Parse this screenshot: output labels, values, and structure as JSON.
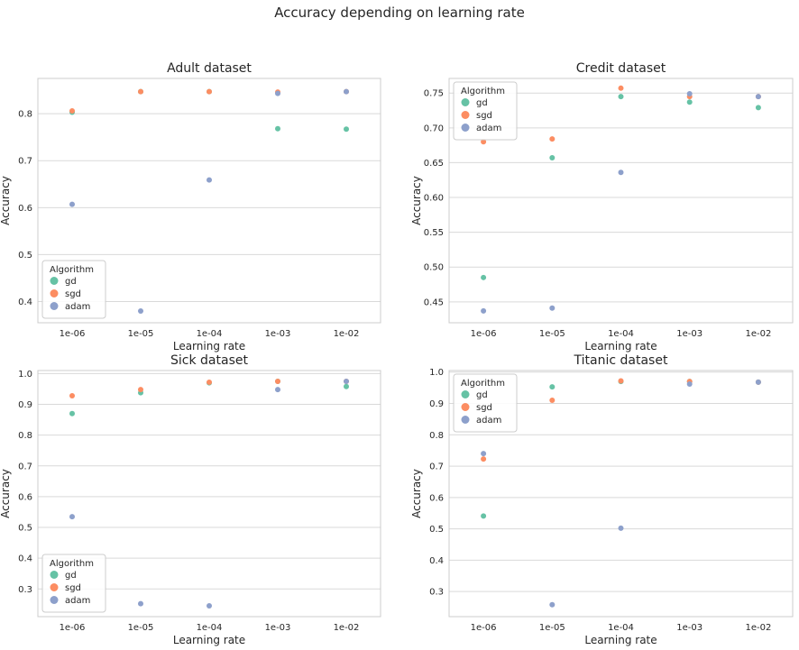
{
  "figure": {
    "suptitle": "Accuracy depending on learning rate"
  },
  "colors": {
    "gd": "#66c2a5",
    "sgd": "#fc8d62",
    "adam": "#8da0cb",
    "grid": "#d9d9d9",
    "frame": "#cccccc"
  },
  "chart_data": [
    {
      "type": "scatter",
      "title": "Adult dataset",
      "xlabel": "Learning rate",
      "ylabel": "Accuracy",
      "categories": [
        "1e-06",
        "1e-05",
        "1e-04",
        "1e-03",
        "1e-02"
      ],
      "ylim": [
        0.355,
        0.875
      ],
      "yticks": [
        0.4,
        0.5,
        0.6,
        0.7,
        0.8
      ],
      "ytick_labels": [
        "0.4",
        "0.5",
        "0.6",
        "0.7",
        "0.8"
      ],
      "legend": {
        "title": "Algorithm",
        "loc": "lower left"
      },
      "series": [
        {
          "name": "gd",
          "color": "#66c2a5",
          "values": [
            0.803,
            0.847,
            0.847,
            0.768,
            0.767
          ]
        },
        {
          "name": "sgd",
          "color": "#fc8d62",
          "values": [
            0.806,
            0.847,
            0.847,
            0.846,
            0.847
          ]
        },
        {
          "name": "adam",
          "color": "#8da0cb",
          "values": [
            0.607,
            0.38,
            0.659,
            0.843,
            0.847
          ]
        }
      ]
    },
    {
      "type": "scatter",
      "title": "Credit dataset",
      "xlabel": "Learning rate",
      "ylabel": "Accuracy",
      "categories": [
        "1e-06",
        "1e-05",
        "1e-04",
        "1e-03",
        "1e-02"
      ],
      "ylim": [
        0.42,
        0.771
      ],
      "yticks": [
        0.45,
        0.5,
        0.55,
        0.6,
        0.65,
        0.7,
        0.75
      ],
      "ytick_labels": [
        "0.45",
        "0.50",
        "0.55",
        "0.60",
        "0.65",
        "0.70",
        "0.75"
      ],
      "legend": {
        "title": "Algorithm",
        "loc": "upper left"
      },
      "series": [
        {
          "name": "gd",
          "color": "#66c2a5",
          "values": [
            0.485,
            0.657,
            0.745,
            0.737,
            0.729
          ]
        },
        {
          "name": "sgd",
          "color": "#fc8d62",
          "values": [
            0.68,
            0.684,
            0.757,
            0.745,
            0.745
          ]
        },
        {
          "name": "adam",
          "color": "#8da0cb",
          "values": [
            0.437,
            0.441,
            0.636,
            0.749,
            0.745
          ]
        }
      ]
    },
    {
      "type": "scatter",
      "title": "Sick dataset",
      "xlabel": "Learning rate",
      "ylabel": "Accuracy",
      "categories": [
        "1e-06",
        "1e-05",
        "1e-04",
        "1e-03",
        "1e-02"
      ],
      "ylim": [
        0.21,
        1.01
      ],
      "yticks": [
        0.3,
        0.4,
        0.5,
        0.6,
        0.7,
        0.8,
        0.9,
        1.0
      ],
      "ytick_labels": [
        "0.3",
        "0.4",
        "0.5",
        "0.6",
        "0.7",
        "0.8",
        "0.9",
        "1.0"
      ],
      "legend": {
        "title": "Algorithm",
        "loc": "lower left"
      },
      "series": [
        {
          "name": "gd",
          "color": "#66c2a5",
          "values": [
            0.87,
            0.938,
            0.97,
            0.975,
            0.958
          ]
        },
        {
          "name": "sgd",
          "color": "#fc8d62",
          "values": [
            0.928,
            0.948,
            0.972,
            0.975,
            0.975
          ]
        },
        {
          "name": "adam",
          "color": "#8da0cb",
          "values": [
            0.535,
            0.252,
            0.245,
            0.948,
            0.975
          ]
        }
      ]
    },
    {
      "type": "scatter",
      "title": "Titanic dataset",
      "xlabel": "Learning rate",
      "ylabel": "Accuracy",
      "categories": [
        "1e-06",
        "1e-05",
        "1e-04",
        "1e-03",
        "1e-02"
      ],
      "ylim": [
        0.22,
        1.005
      ],
      "yticks": [
        0.3,
        0.4,
        0.5,
        0.6,
        0.7,
        0.8,
        0.9,
        1.0
      ],
      "ytick_labels": [
        "0.3",
        "0.4",
        "0.5",
        "0.6",
        "0.7",
        "0.8",
        "0.9",
        "1.0"
      ],
      "legend": {
        "title": "Algorithm",
        "loc": "upper left"
      },
      "series": [
        {
          "name": "gd",
          "color": "#66c2a5",
          "values": [
            0.541,
            0.953,
            0.97,
            0.97,
            0.968
          ]
        },
        {
          "name": "sgd",
          "color": "#fc8d62",
          "values": [
            0.723,
            0.91,
            0.972,
            0.97,
            0.968
          ]
        },
        {
          "name": "adam",
          "color": "#8da0cb",
          "values": [
            0.74,
            0.258,
            0.502,
            0.962,
            0.968
          ]
        }
      ]
    }
  ]
}
